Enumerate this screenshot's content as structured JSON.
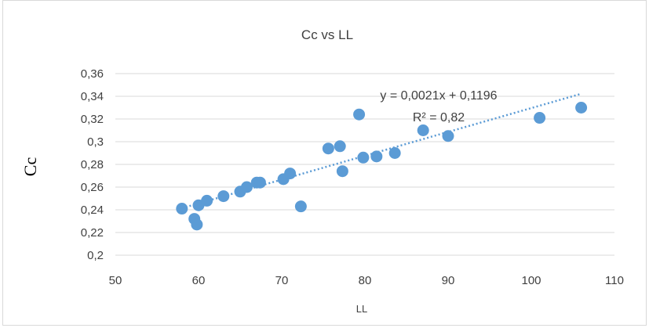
{
  "chart_data": {
    "type": "scatter",
    "title": "Cc vs LL",
    "xlabel": "LL",
    "ylabel": "Cc",
    "xlim": [
      50,
      110
    ],
    "ylim": [
      0.2,
      0.36
    ],
    "x_ticks": [
      50,
      60,
      70,
      80,
      90,
      100,
      110
    ],
    "x_tick_labels": [
      "50",
      "60",
      "70",
      "80",
      "90",
      "100",
      "110"
    ],
    "y_ticks": [
      0.2,
      0.22,
      0.24,
      0.26,
      0.28,
      0.3,
      0.32,
      0.34,
      0.36
    ],
    "y_tick_labels": [
      "0,2",
      "0,22",
      "0,24",
      "0,26",
      "0,28",
      "0,3",
      "0,32",
      "0,34",
      "0,36"
    ],
    "grid": "horizontal",
    "points": [
      {
        "x": 58.0,
        "y": 0.241
      },
      {
        "x": 59.5,
        "y": 0.232
      },
      {
        "x": 59.8,
        "y": 0.227
      },
      {
        "x": 60.0,
        "y": 0.244
      },
      {
        "x": 61.0,
        "y": 0.248
      },
      {
        "x": 63.0,
        "y": 0.252
      },
      {
        "x": 65.0,
        "y": 0.256
      },
      {
        "x": 65.8,
        "y": 0.26
      },
      {
        "x": 67.0,
        "y": 0.264
      },
      {
        "x": 67.4,
        "y": 0.264
      },
      {
        "x": 70.2,
        "y": 0.267
      },
      {
        "x": 71.0,
        "y": 0.272
      },
      {
        "x": 72.3,
        "y": 0.243
      },
      {
        "x": 75.6,
        "y": 0.294
      },
      {
        "x": 77.0,
        "y": 0.296
      },
      {
        "x": 77.3,
        "y": 0.274
      },
      {
        "x": 79.3,
        "y": 0.324
      },
      {
        "x": 79.8,
        "y": 0.286
      },
      {
        "x": 81.4,
        "y": 0.287
      },
      {
        "x": 83.6,
        "y": 0.29
      },
      {
        "x": 87.0,
        "y": 0.31
      },
      {
        "x": 90.0,
        "y": 0.305
      },
      {
        "x": 101.0,
        "y": 0.321
      },
      {
        "x": 106.0,
        "y": 0.33
      }
    ],
    "trendline": {
      "type": "linear",
      "slope": 0.0021,
      "intercept": 0.1196,
      "x_range": [
        58,
        106
      ],
      "equation": "y = 0,0021x + 0,1196",
      "r_squared": "R² = 0,82"
    },
    "colors": {
      "points": "#5b9bd5",
      "trendline": "#5b9bd5",
      "grid": "#d9d9d9",
      "text": "#404040"
    }
  }
}
